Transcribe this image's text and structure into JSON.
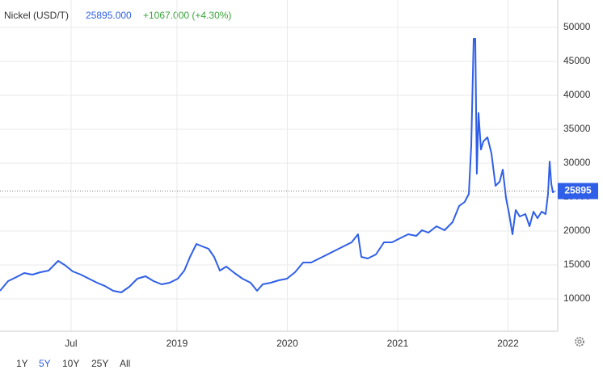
{
  "header": {
    "title": "Nickel (USD/T)",
    "price": "25895.000",
    "change": "+1067.000 (+4.30%)"
  },
  "range_buttons": [
    "1Y",
    "5Y",
    "10Y",
    "25Y",
    "All"
  ],
  "active_range": 1,
  "chart_data": {
    "type": "line",
    "last_value": 25895,
    "xlim": [
      2017.396,
      2022.451
    ],
    "ylim": [
      5240,
      54050
    ],
    "xticks": [
      {
        "value": 2018.04,
        "label": "Jul"
      },
      2019,
      2020,
      2021,
      2022
    ],
    "yticks": [
      10000,
      15000,
      20000,
      25000,
      30000,
      35000,
      40000,
      45000,
      50000
    ],
    "grid": true,
    "x": [
      2017.396,
      2017.469,
      2017.543,
      2017.616,
      2017.689,
      2017.762,
      2017.836,
      2017.923,
      2017.982,
      2018.055,
      2018.129,
      2018.202,
      2018.275,
      2018.348,
      2018.422,
      2018.495,
      2018.568,
      2018.641,
      2018.715,
      2018.788,
      2018.861,
      2018.934,
      2019.008,
      2019.066,
      2019.118,
      2019.176,
      2019.228,
      2019.286,
      2019.337,
      2019.389,
      2019.447,
      2019.521,
      2019.594,
      2019.667,
      2019.726,
      2019.777,
      2019.85,
      2019.923,
      2019.997,
      2020.07,
      2020.143,
      2020.216,
      2020.29,
      2020.363,
      2020.436,
      2020.509,
      2020.583,
      2020.641,
      2020.671,
      2020.729,
      2020.803,
      2020.876,
      2020.949,
      2021.022,
      2021.096,
      2021.169,
      2021.22,
      2021.279,
      2021.352,
      2021.425,
      2021.498,
      2021.557,
      2021.608,
      2021.645,
      2021.667,
      2021.689,
      2021.704,
      2021.718,
      2021.733,
      2021.755,
      2021.777,
      2021.814,
      2021.85,
      2021.887,
      2021.924,
      2021.953,
      2021.982,
      2022.011,
      2022.041,
      2022.07,
      2022.107,
      2022.158,
      2022.195,
      2022.231,
      2022.268,
      2022.305,
      2022.341,
      2022.363,
      2022.378,
      2022.393,
      2022.407,
      2022.422
    ],
    "series": [
      {
        "name": "Nickel (USD/T)",
        "color": "#2f5fe8",
        "values": [
          11190,
          12620,
          13210,
          13810,
          13570,
          13930,
          14170,
          15600,
          15000,
          14050,
          13570,
          12980,
          12380,
          11900,
          11190,
          10950,
          11790,
          12980,
          13330,
          12620,
          12140,
          12380,
          12980,
          14170,
          16190,
          18100,
          17740,
          17380,
          16190,
          14170,
          14760,
          13810,
          12980,
          12380,
          11190,
          12140,
          12380,
          12740,
          12980,
          13930,
          15360,
          15360,
          15950,
          16550,
          17140,
          17740,
          18330,
          19520,
          16190,
          15950,
          16550,
          18330,
          18330,
          18930,
          19520,
          19290,
          20120,
          19760,
          20710,
          20120,
          21310,
          23690,
          24290,
          25480,
          32620,
          48330,
          48330,
          28450,
          37380,
          32020,
          33210,
          33810,
          31430,
          26670,
          27260,
          29050,
          24880,
          22500,
          19520,
          23100,
          22140,
          22500,
          20710,
          22860,
          21900,
          22860,
          22500,
          25480,
          30240,
          26900,
          25710,
          25895
        ]
      }
    ]
  }
}
